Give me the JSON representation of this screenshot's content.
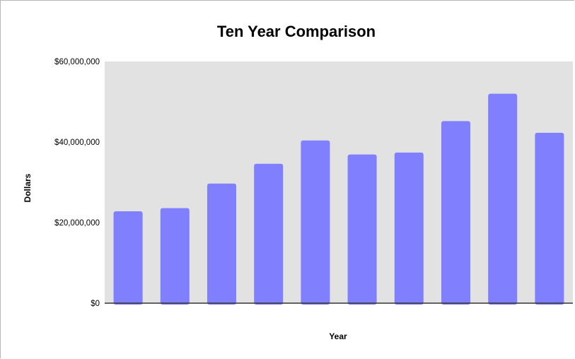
{
  "chart_data": {
    "type": "bar",
    "title": "Ten Year Comparison",
    "xlabel": "Year",
    "ylabel": "Dollars",
    "categories": [
      "",
      "",
      "",
      "",
      "",
      "",
      "",
      "",
      "",
      ""
    ],
    "values": [
      22800000,
      23600000,
      29700000,
      34600000,
      40400000,
      36900000,
      37400000,
      45200000,
      52000000,
      42300000
    ],
    "ylim": [
      0,
      60000000
    ],
    "y_ticks": [
      0,
      20000000,
      40000000,
      60000000
    ],
    "y_tick_labels": [
      "$0",
      "$20,000,000",
      "$40,000,000",
      "$60,000,000"
    ],
    "grid": false,
    "legend": "none",
    "colors": {
      "bar": "#8080ff",
      "plot_background": "#e2e2e2",
      "baseline": "#333333"
    }
  }
}
